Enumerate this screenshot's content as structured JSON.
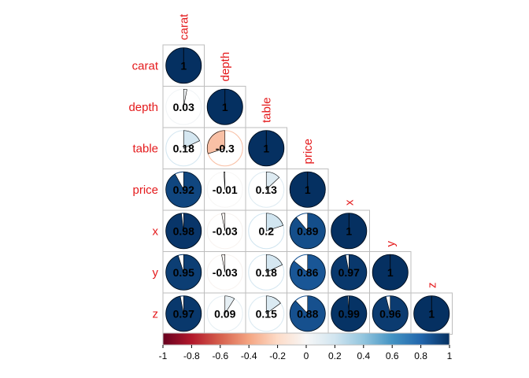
{
  "chart_data": {
    "type": "heatmap",
    "method": "pie",
    "layout": "lower",
    "variables": [
      "carat",
      "depth",
      "table",
      "price",
      "x",
      "y",
      "z"
    ],
    "matrix": [
      [
        1,
        0.03,
        0.18,
        0.92,
        0.98,
        0.95,
        0.97
      ],
      [
        0.03,
        1,
        -0.3,
        -0.01,
        -0.03,
        -0.03,
        0.09
      ],
      [
        0.18,
        -0.3,
        1,
        0.13,
        0.2,
        0.18,
        0.15
      ],
      [
        0.92,
        -0.01,
        0.13,
        1,
        0.89,
        0.86,
        0.88
      ],
      [
        0.98,
        -0.03,
        0.2,
        0.89,
        1,
        0.97,
        0.99
      ],
      [
        0.95,
        -0.03,
        0.18,
        0.86,
        0.97,
        1,
        0.96
      ],
      [
        0.97,
        0.09,
        0.15,
        0.88,
        0.99,
        0.96,
        1
      ]
    ],
    "color_range": [
      -1,
      1
    ],
    "colorbar_ticks": [
      "-1",
      "-0.8",
      "-0.6",
      "-0.4",
      "-0.2",
      "0",
      "0.2",
      "0.4",
      "0.6",
      "0.8",
      "1"
    ],
    "colors": {
      "negative_end": "#67001f",
      "neutral": "#f7f7f7",
      "positive_end": "#053061",
      "label": "#e41a1c"
    }
  }
}
